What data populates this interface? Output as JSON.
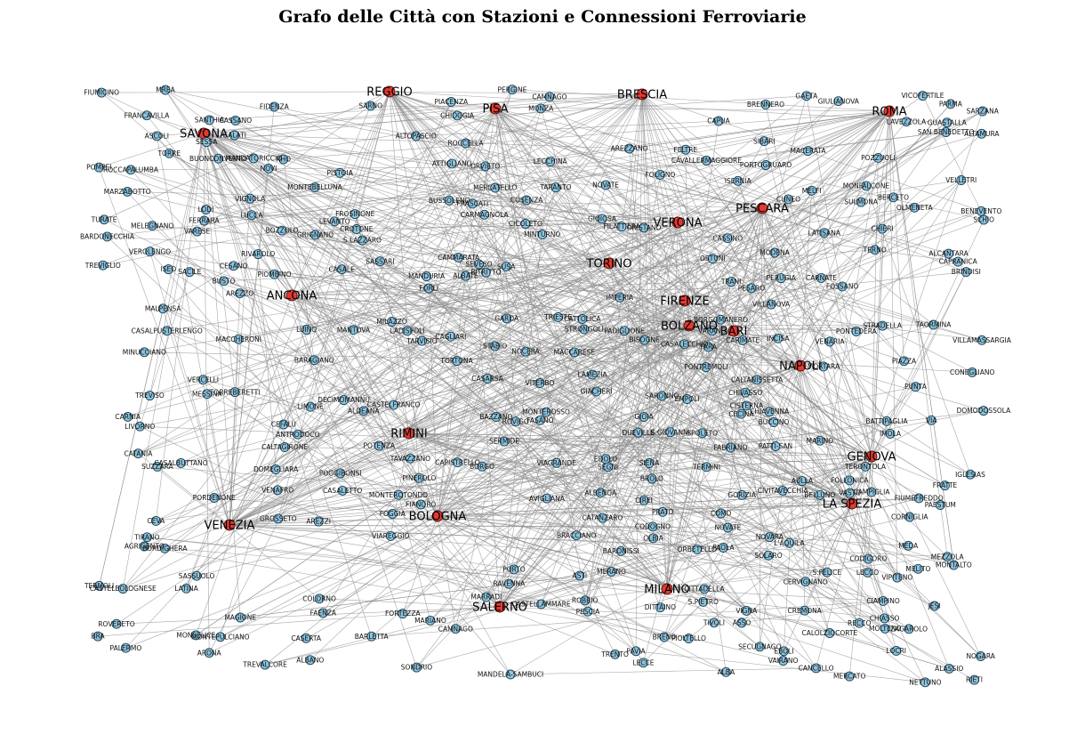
{
  "title": "Grafo delle Città con Stazioni e Connessioni Ferroviarie",
  "hubs": [
    "REGGIO",
    "PISA",
    "BRESCIA",
    "ROMA",
    "SAVONA",
    "VERONA",
    "PESCARA",
    "TORINO",
    "ANCONA",
    "FIRENZE",
    "BOLZANO",
    "BARI",
    "NAPOLI",
    "RIMINI",
    "GENOVA",
    "LA SPEZIA",
    "VENEZIA",
    "BOLOGNA",
    "SALERNO",
    "MILANO"
  ],
  "stations": [
    "BRA",
    "FROSINONE",
    "CISTERNA",
    "VIAREGGIO",
    "CHIAVENNA",
    "TERMINI",
    "LATISANA",
    "CAPUA",
    "PONTREMOLI",
    "MELITO",
    "MESSINA",
    "FIUMEFREDDO",
    "S.GIOVANNI",
    "ZAGAROLO",
    "FORLI",
    "FOSSANO",
    "CESANO",
    "SEVESO",
    "VIA",
    "VIGNA",
    "VEROLENGO",
    "GIACHERI",
    "FRASCATI",
    "LAVEZZOLA",
    "PIOLTELLO",
    "TARANTO",
    "CAMMARATA",
    "TARVISIO",
    "CASTELFRANCO",
    "ORISTANO",
    "PIAZZA",
    "TERONTOLA",
    "SARONNO",
    "AVIGLIANA",
    "TAORMINA",
    "CASSINO",
    "IMPERIA",
    "MILAZZO",
    "CREMONA",
    "SASSUOLO",
    "CASALPUSTERLENGO",
    "GALATI",
    "SCHIO",
    "FOLIGNO",
    "SERMIDE",
    "MONTEPULCIANO",
    "CHIASSO",
    "MOLTENO",
    "MODENA",
    "BARDONECCHIA",
    "MREA",
    "CALTANISSETTA",
    "CHIERI",
    "MARIANO",
    "VERCELLI",
    "BRENO",
    "ROVERETO",
    "TREVALCORE",
    "ALBENGA",
    "LEVANTO",
    "CEFALU",
    "AGRIGENTO",
    "COMO",
    "MONZA",
    "MONSELICE",
    "PORDENONE",
    "CIAMPINO",
    "NOGARA",
    "INCISA",
    "AREZZI",
    "STRADELLA",
    "LUINO",
    "BATTIPAGLIA",
    "TAVAZZANO",
    "PESARO",
    "CARIMATE",
    "PIOMBINO",
    "RIETI",
    "DITTAINO",
    "OLMENETA",
    "FASANO",
    "EBOLI",
    "COSENZA",
    "MERCATELLO",
    "EMPOLI",
    "VILLANOVA",
    "BRENNERO",
    "ALDEANA",
    "GROSSETO",
    "CROTONE",
    "CASALECCHIO",
    "BORDIGHERA",
    "CALOLZIOCORTE",
    "PARMA",
    "PATTI-SAN",
    "ASSO",
    "ROCCAPALUMBA",
    "TORRE",
    "PAVIA",
    "NOVI",
    "VENAFRO",
    "BARAGIANO",
    "VILLAMASSARGIA",
    "ORBETELLO",
    "CAGLIARI",
    "MELEGNANO",
    "CANCELLO",
    "LECCHINA",
    "CALTAGIRONE",
    "POGGIBONSI",
    "LAMEZIA",
    "ALTAMURA",
    "ALBATE",
    "FIUMICINO",
    "ROCCELLA",
    "CASERTA",
    "L'AQUILA",
    "MARRADI",
    "MONTALTO",
    "LADISPOLI",
    "VITERBO",
    "CATANZARO",
    "MERCATO",
    "CASARSA",
    "ALASSIO",
    "ALTOPASCIO",
    "FORTEZZA",
    "NOVATE",
    "MEZZOLA",
    "BOZZOLO",
    "MACERATA",
    "PRATO",
    "MACCARESE",
    "TERNO",
    "FARA",
    "BUSSOLENO",
    "FILATTIERA",
    "VIPITENO",
    "MONTEROTONDO",
    "POZZUOLI",
    "BARLETTA",
    "POMPEI",
    "PIACENZA",
    "TIVOLI",
    "LUCCA",
    "PAESTUM",
    "MANDATORICCIO",
    "MARINO",
    "PORTOGRUARO",
    "FOGGIA",
    "BARONISSI",
    "AREZZANO",
    "CATANIA",
    "ANTRODOCO",
    "SIENA",
    "VARANO",
    "AULLA",
    "PUNTA",
    "VENARIA",
    "CODIGORO",
    "SULMONA",
    "ISERNIA",
    "ARONA",
    "GUASTALLA",
    "JESI",
    "ALCANTARA",
    "FIDENZA",
    "ROVIGO",
    "BUSTO",
    "CICOLETO",
    "FRANCAVILLA",
    "CASALBUTTANO",
    "PORTO",
    "CHIVASSO",
    "BORGOMANERO",
    "LECCE",
    "VAIRANO",
    "FABRIANO",
    "MELFI",
    "CEVA",
    "CATTOLICA",
    "ASCOLI",
    "DOMEGLIARA",
    "SANTHIA",
    "TERMOLI",
    "PERUGIA",
    "CAMNAGO",
    "GAETA",
    "BENEVENTO",
    "MARZABOTTO",
    "NOVARA",
    "COLORNO",
    "CARNATE",
    "SUSA",
    "FAENZA",
    "CAMPIGLIA",
    "CASTELLAMMARE",
    "S.FELICE",
    "OSTUNI",
    "TRANI",
    "MONFALCONE",
    "FOLLONICA",
    "MORTARA",
    "CERVIGNANO",
    "MERANO",
    "LECCO",
    "GARDA",
    "BRACCIANO",
    "TRIESTE",
    "MINTURNO",
    "PAOLA",
    "S.LAZZARO",
    "GIOIA",
    "POTENZA",
    "SEGNI",
    "NOVATE",
    "RHO",
    "ATTIGLIANO",
    "CASSANO",
    "TORTONA",
    "LATINA",
    "CASALE",
    "LODI",
    "DUEVILLE",
    "SOLARO",
    "CAVALLERMAGGIORE",
    "CODOGNO",
    "IMOLA",
    "CAPRANICA",
    "SARZANA",
    "SACILE",
    "RECCO",
    "CECINA",
    "LIMONE",
    "CUNEO",
    "BELLUNO",
    "TRENTO",
    "SARNO",
    "CIREI",
    "ALBA",
    "VASTO",
    "GIOIOSA",
    "BRINDISI",
    "SECUGNAGO",
    "EDOLO",
    "STABIO",
    "LIVORNO",
    "BISOGNE",
    "SASSARI",
    "MALPENSA",
    "BORGO",
    "MONTEROSSO",
    "LOCRI",
    "RAVENNA",
    "IGLESIAS",
    "CAPISTRELLO",
    "CASTELBOLOGNESE",
    "VARESE",
    "PISTOIA",
    "OLBIA",
    "MEDA",
    "SAN BENEDETTO",
    "CONEGLIANO",
    "DECIMOMANNU",
    "SIBARI",
    "MANTOVA",
    "CIVITAVECCHIA",
    "NETTUNO",
    "MAGIONE",
    "AREZZO",
    "MANDELA-SAMBUCI",
    "BAZZANO",
    "FELTRE",
    "VIGNOLA",
    "DOMODOSSOLA",
    "CAMNAGO",
    "ASTI",
    "CARMAGNOLA",
    "SUZZARA",
    "ORVIETO",
    "GIULIANOVA",
    "CORNIGLIA",
    "CITTADELLA",
    "CASALETTO",
    "PERGINE",
    "SESSA",
    "TREVISO",
    "FERRARA",
    "PINEROLO",
    "GRIGNANO",
    "S.PIETRO",
    "RIVAROLO",
    "STRONGOLI",
    "PADIGLIONE",
    "PESCIA",
    "PONTEDERA",
    "SONDRIO",
    "ALBANO",
    "BERCETO",
    "NOCERA",
    "TREVIGLIO",
    "BUCCINO",
    "CARNIA",
    "VICOFERTILE",
    "FRATTE",
    "ROBBIO",
    "TIRANO",
    "FIANORO",
    "ISEO",
    "MANDURIA",
    "MINUCCIANO",
    "BUONCONVENTO",
    "CHIOGGIA",
    "MACCHERONI",
    "BITRITTO",
    "TURATE",
    "BROLO",
    "PALERMO",
    "GORIZIA",
    "SPOLETO",
    "MONTEBELLUNA",
    "TORREBERETTI",
    "VELLETRI",
    "VIAGRANDE"
  ]
}
